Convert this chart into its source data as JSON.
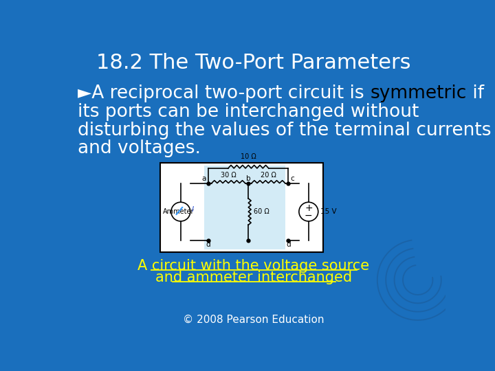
{
  "background_color": "#1a6fbd",
  "title": "18.2 The Two-Port Parameters",
  "title_color": "#ffffff",
  "title_fontsize": 22,
  "bullet_text_line1a": "►A reciprocal two-port circuit is ",
  "bullet_highlight": "symmetric",
  "bullet_text_line1b": " if",
  "bullet_text_line2": "its ports can be interchanged without",
  "bullet_text_line3": "disturbing the values of the terminal currents",
  "bullet_text_line4": "and voltages.",
  "bullet_color": "#ffffff",
  "highlight_color": "#000000",
  "caption_line1": "A circuit with the voltage source",
  "caption_line2": "and ammeter interchanged",
  "caption_color": "#ffff00",
  "copyright": "© 2008 Pearson Education",
  "copyright_color": "#ffffff",
  "swirl_color": "#1a5fa0"
}
